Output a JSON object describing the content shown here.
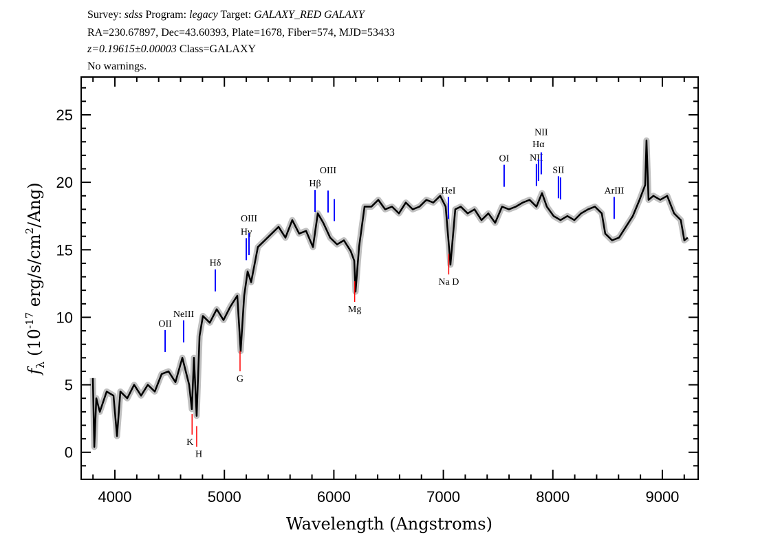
{
  "header": {
    "line1": [
      {
        "text": "Survey: ",
        "italic": false
      },
      {
        "text": "sdss",
        "italic": true
      },
      {
        "text": " Program: ",
        "italic": false
      },
      {
        "text": "legacy",
        "italic": true
      },
      {
        "text": " Target: ",
        "italic": false
      },
      {
        "text": "GALAXY_RED GALAXY",
        "italic": true
      }
    ],
    "line2": "RA=230.67897, Dec=43.60393, Plate=1678, Fiber=574, MJD=53433",
    "line3_z": "z=0.19615±0.00003",
    "line3_class": " Class=GALAXY",
    "line4": "No warnings."
  },
  "chart_data": {
    "type": "line",
    "xlabel": "Wavelength (Angstroms)",
    "ylabel": {
      "f": "f",
      "sub": "λ",
      "pre": " (10",
      "exp": "-17",
      "mid": " erg/s/cm",
      "exp2": "2",
      "post": "/Ang)"
    },
    "xlim": [
      3692,
      9327
    ],
    "ylim": [
      -2,
      27.8
    ],
    "xticks": [
      4000,
      5000,
      6000,
      7000,
      8000,
      9000
    ],
    "yticks": [
      0,
      5,
      10,
      15,
      20,
      25
    ],
    "grid": false,
    "colors": {
      "flux": "#000000",
      "error_band": "#c0c0c0",
      "emission": "#0000ff",
      "absorption": "#ff0000"
    },
    "series": [
      {
        "x": [
          3799,
          3812,
          3830,
          3862,
          3925,
          3987,
          4019,
          4050,
          4113,
          4176,
          4239,
          4301,
          4364,
          4427,
          4490,
          4553,
          4616,
          4678,
          4703,
          4722,
          4747,
          4773,
          4804,
          4867,
          4930,
          4992,
          5055,
          5118,
          5149,
          5181,
          5212,
          5244,
          5306,
          5369,
          5432,
          5495,
          5558,
          5620,
          5683,
          5746,
          5809,
          5853,
          5903,
          5966,
          6029,
          6092,
          6154,
          6186,
          6198,
          6230,
          6280,
          6343,
          6406,
          6468,
          6531,
          6594,
          6657,
          6720,
          6782,
          6845,
          6908,
          6971,
          7021,
          7065,
          7109,
          7159,
          7222,
          7285,
          7348,
          7411,
          7473,
          7536,
          7599,
          7662,
          7725,
          7788,
          7850,
          7901,
          7945,
          8007,
          8070,
          8133,
          8196,
          8258,
          8321,
          8384,
          8447,
          8478,
          8541,
          8604,
          8667,
          8730,
          8792,
          8843,
          8855,
          8874,
          8918,
          8981,
          9044,
          9107,
          9169,
          9201,
          9232
        ],
        "y": [
          5.5,
          0.4,
          4.0,
          3.0,
          4.5,
          4.2,
          1.2,
          4.5,
          4.0,
          5.0,
          4.2,
          5.0,
          4.5,
          5.8,
          6.0,
          5.2,
          7.0,
          5.0,
          3.2,
          7.0,
          2.7,
          8.6,
          10.1,
          9.6,
          10.6,
          9.8,
          10.8,
          11.6,
          7.5,
          11.6,
          13.4,
          12.6,
          15.2,
          15.7,
          16.2,
          16.7,
          15.9,
          17.2,
          16.2,
          16.4,
          15.2,
          17.7,
          17.0,
          15.9,
          15.4,
          15.7,
          14.9,
          14.2,
          11.9,
          15.2,
          18.2,
          18.2,
          18.7,
          18.0,
          18.2,
          17.7,
          18.5,
          18.0,
          18.2,
          18.7,
          18.5,
          19.0,
          18.2,
          13.9,
          18.0,
          18.2,
          17.7,
          18.0,
          17.2,
          17.7,
          17.0,
          18.2,
          18.0,
          18.2,
          18.5,
          18.7,
          18.2,
          19.2,
          18.2,
          17.5,
          17.2,
          17.5,
          17.2,
          17.7,
          18.0,
          18.2,
          17.7,
          16.2,
          15.7,
          15.9,
          16.7,
          17.5,
          18.7,
          19.8,
          23.1,
          18.7,
          19.0,
          18.7,
          19.0,
          17.7,
          17.2,
          15.7,
          15.9
        ]
      }
    ],
    "lines": [
      {
        "label": "OII",
        "wavelength": 4459,
        "kind": "emission"
      },
      {
        "label": "NeIII",
        "wavelength": 4628,
        "kind": "emission"
      },
      {
        "label": "Hδ",
        "wavelength": 4917,
        "kind": "emission"
      },
      {
        "label": "Hγ",
        "wavelength": 5200,
        "kind": "emission"
      },
      {
        "label": "OIII",
        "wavelength": 5225,
        "kind": "emission"
      },
      {
        "label": "Hβ",
        "wavelength": 5828,
        "kind": "emission"
      },
      {
        "label": "OIII",
        "wavelength": 5947,
        "kind": "emission"
      },
      {
        "label": "",
        "wavelength": 6004,
        "kind": "emission"
      },
      {
        "label": "HeI",
        "wavelength": 7046,
        "kind": "emission"
      },
      {
        "label": "OI",
        "wavelength": 7555,
        "kind": "emission"
      },
      {
        "label": "NII",
        "wavelength": 7850,
        "kind": "emission"
      },
      {
        "label": "Hα",
        "wavelength": 7869,
        "kind": "emission"
      },
      {
        "label": "NII",
        "wavelength": 7894,
        "kind": "emission"
      },
      {
        "label": "SII",
        "wavelength": 8051,
        "kind": "emission"
      },
      {
        "label": "",
        "wavelength": 8070,
        "kind": "emission"
      },
      {
        "label": "ArIII",
        "wavelength": 8560,
        "kind": "emission"
      },
      {
        "label": "K",
        "wavelength": 4705,
        "kind": "absorption"
      },
      {
        "label": "H",
        "wavelength": 4747,
        "kind": "absorption"
      },
      {
        "label": "G",
        "wavelength": 5143,
        "kind": "absorption"
      },
      {
        "label": "Mg",
        "wavelength": 6190,
        "kind": "absorption"
      },
      {
        "label": "Na  D",
        "wavelength": 7049,
        "kind": "absorption"
      }
    ]
  }
}
